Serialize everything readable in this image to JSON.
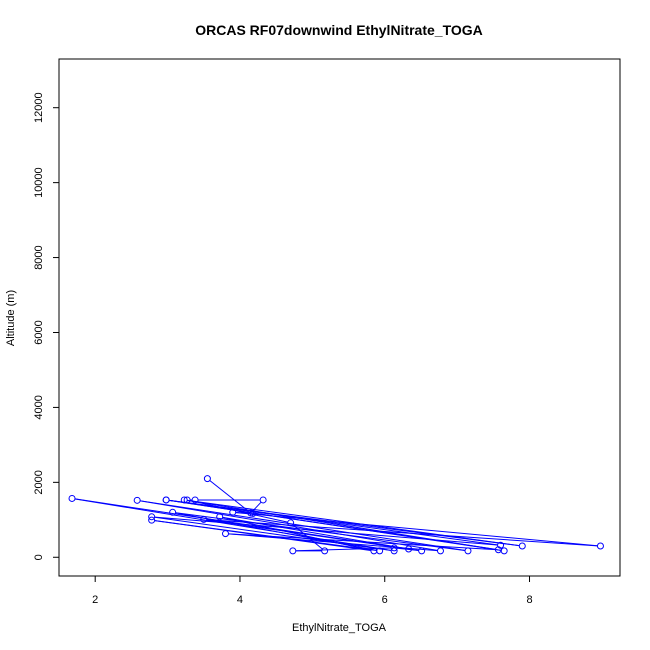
{
  "chart_data": {
    "type": "line",
    "title": "ORCAS RF07downwind EthylNitrate_TOGA",
    "xlabel": "EthylNitrate_TOGA",
    "ylabel": "Altitude (m)",
    "xlim": [
      1.5,
      9.25
    ],
    "ylim": [
      -500,
      13300
    ],
    "xticks": [
      2,
      4,
      6,
      8
    ],
    "yticks": [
      0,
      2000,
      4000,
      6000,
      8000,
      10000,
      12000
    ],
    "grid": false,
    "line_color": "#0000ff",
    "marker": "open-circle",
    "series": [
      {
        "x": [
          3.55,
          4.15,
          4.32,
          3.38,
          3.27,
          4.7,
          5.17,
          4.73,
          6.13,
          6.51,
          1.68,
          6.13,
          2.78,
          7.6,
          2.98,
          7.65,
          3.23,
          7.9,
          2.98,
          7.57,
          3.8,
          6.77,
          2.58,
          7.15,
          3.07,
          5.93,
          2.78,
          5.85,
          3.72,
          6.33,
          3.5,
          8.98,
          3.9,
          4.18
        ],
        "y": [
          2100,
          1180,
          1530,
          1530,
          1530,
          920,
          170,
          170,
          250,
          170,
          1570,
          170,
          1080,
          320,
          1530,
          170,
          1530,
          300,
          1530,
          200,
          630,
          170,
          1520,
          170,
          1200,
          170,
          990,
          170,
          1080,
          220,
          1010,
          300,
          1200,
          1170
        ]
      }
    ]
  }
}
